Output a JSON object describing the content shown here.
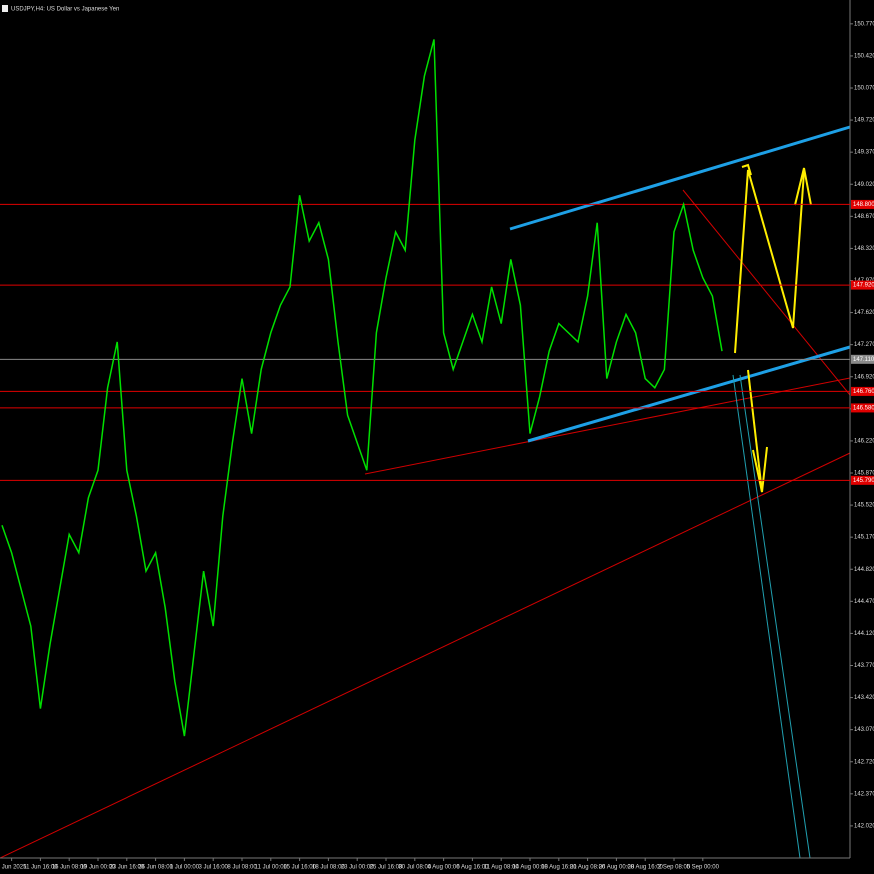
{
  "chart_data": {
    "type": "line",
    "title": "USDJPY,H4: US Dollar vs Japanese Yen",
    "categories": [
      null,
      "4 Jun 2025",
      null,
      null,
      "11 Jun 16:00",
      null,
      null,
      "16 Jun 08:00",
      null,
      null,
      "19 Jun 00:00",
      null,
      null,
      "23 Jun 16:00",
      null,
      null,
      "26 Jun 08:00",
      null,
      null,
      "1 Jul 00:00",
      null,
      null,
      "3 Jul 16:00",
      null,
      null,
      "8 Jul 08:00",
      null,
      null,
      "11 Jul 00:00",
      null,
      null,
      "15 Jul 16:00",
      null,
      null,
      "18 Jul 08:00",
      null,
      null,
      "23 Jul 00:00",
      null,
      null,
      "25 Jul 16:00",
      null,
      null,
      "30 Jul 08:00",
      null,
      null,
      "4 Aug 00:00",
      null,
      null,
      "6 Aug 16:00",
      null,
      null,
      "11 Aug 08:00",
      null,
      null,
      "14 Aug 00:00",
      null,
      null,
      "18 Aug 16:00",
      null,
      null,
      "21 Aug 08:00",
      null,
      null,
      "26 Aug 00:00",
      null,
      null,
      "28 Aug 16:00",
      null,
      null,
      "2 Sep 08:00",
      null,
      null,
      "5 Sep 00:00",
      null,
      null
    ],
    "series": [
      {
        "name": "USDJPY",
        "color": "#00e000",
        "values": [
          145.3,
          145.0,
          144.6,
          144.2,
          143.3,
          144.0,
          144.6,
          145.2,
          145.0,
          145.6,
          145.9,
          146.8,
          147.3,
          145.9,
          145.4,
          144.8,
          145.0,
          144.4,
          143.6,
          143.0,
          143.9,
          144.8,
          144.2,
          145.4,
          146.2,
          146.9,
          146.3,
          147.0,
          147.4,
          147.7,
          147.9,
          148.9,
          148.4,
          148.6,
          148.2,
          147.3,
          146.5,
          146.2,
          145.9,
          147.4,
          148.0,
          148.5,
          148.3,
          149.5,
          150.2,
          150.6,
          147.4,
          147.0,
          147.3,
          147.6,
          147.3,
          147.9,
          147.5,
          148.2,
          147.7,
          146.3,
          146.7,
          147.2,
          147.5,
          147.4,
          147.3,
          147.8,
          148.6,
          146.9,
          147.3,
          147.6,
          147.4,
          146.9,
          146.8,
          147.0,
          148.5,
          148.8,
          148.3,
          148.0,
          147.8,
          147.2
        ]
      }
    ],
    "ylim": [
      141.67,
      151.03
    ],
    "yticks": [
      {
        "value": 150.77,
        "label": "150.770"
      },
      {
        "value": 150.42,
        "label": "150.420"
      },
      {
        "value": 150.07,
        "label": "150.070"
      },
      {
        "value": 149.72,
        "label": "149.720"
      },
      {
        "value": 149.37,
        "label": "149.370"
      },
      {
        "value": 149.02,
        "label": "149.020"
      },
      {
        "value": 148.67,
        "label": "148.670"
      },
      {
        "value": 148.32,
        "label": "148.320"
      },
      {
        "value": 147.97,
        "label": "147.970"
      },
      {
        "value": 147.62,
        "label": "147.620"
      },
      {
        "value": 147.27,
        "label": "147.270"
      },
      {
        "value": 146.92,
        "label": "146.920"
      },
      {
        "value": 146.57,
        "label": "146.570"
      },
      {
        "value": 146.22,
        "label": "146.220"
      },
      {
        "value": 145.87,
        "label": "145.870"
      },
      {
        "value": 145.52,
        "label": "145.520"
      },
      {
        "value": 145.17,
        "label": "145.170"
      },
      {
        "value": 144.82,
        "label": "144.820"
      },
      {
        "value": 144.47,
        "label": "144.470"
      },
      {
        "value": 144.12,
        "label": "144.120"
      },
      {
        "value": 143.77,
        "label": "143.770"
      },
      {
        "value": 143.42,
        "label": "143.420"
      },
      {
        "value": 143.07,
        "label": "143.070"
      },
      {
        "value": 142.72,
        "label": "142.720"
      },
      {
        "value": 142.37,
        "label": "142.370"
      },
      {
        "value": 142.02,
        "label": "142.020"
      }
    ],
    "levels": [
      {
        "value": 148.8,
        "label": "148.800"
      },
      {
        "value": 147.92,
        "label": "147.920"
      },
      {
        "value": 146.76,
        "label": "146.760"
      },
      {
        "value": 146.58,
        "label": "146.580"
      },
      {
        "value": 145.79,
        "label": "145.790"
      }
    ],
    "level_color": "#e00000",
    "price_line": {
      "value": 147.11,
      "label": "147.110"
    },
    "price_line_color": "#8a8a8a",
    "grid": false
  }
}
